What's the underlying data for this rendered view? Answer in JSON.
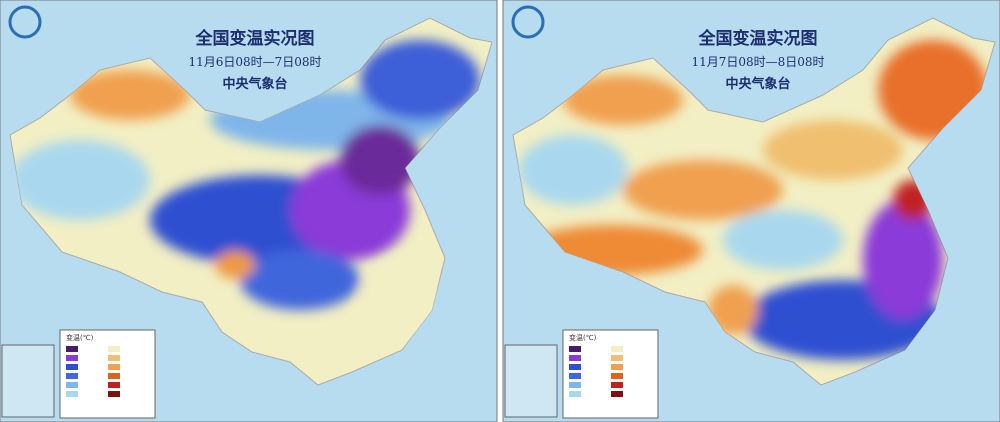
{
  "panels": [
    {
      "title": "全国变温实况图",
      "period": "11月6日08时—7日08时",
      "agency": "中央气象台",
      "legend_title": "变温(℃)"
    },
    {
      "title": "全国变温实况图",
      "period": "11月7日08时—8日08时",
      "agency": "中央气象台",
      "legend_title": "变温(℃)"
    }
  ]
}
